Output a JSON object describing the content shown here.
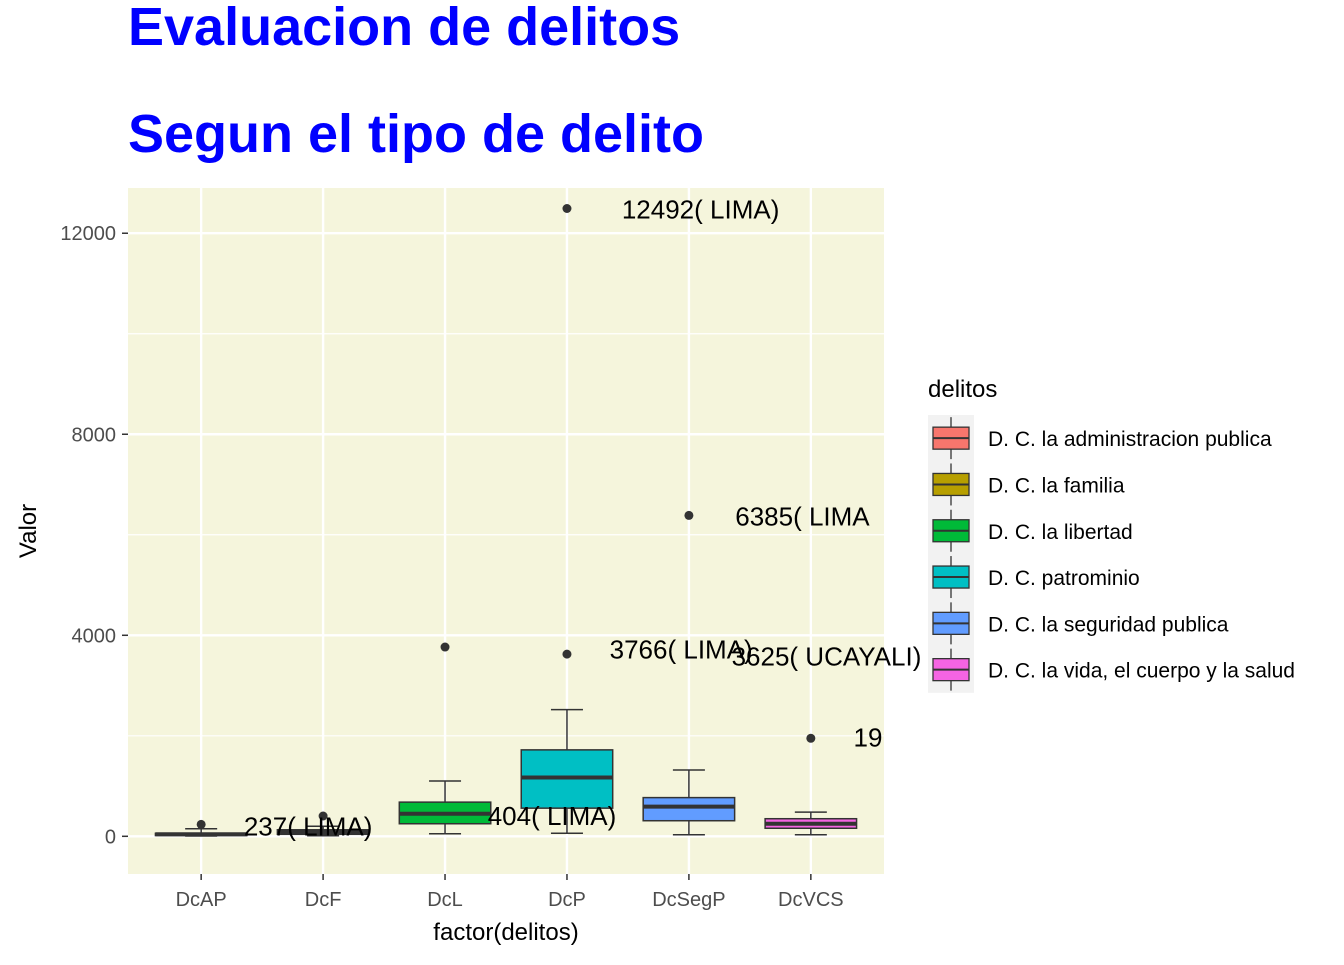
{
  "chart_data": {
    "type": "boxplot",
    "title": "Evaluacion de delitos",
    "subtitle": "Segun el tipo de delito",
    "title_color": "#0000FF",
    "xlabel": "factor(delitos)",
    "ylabel": "Valor",
    "ylim": [
      -750,
      12900
    ],
    "yticks": [
      0,
      4000,
      8000,
      12000
    ],
    "ytick_labels": [
      "0",
      "4000",
      "8000",
      "12000"
    ],
    "panel_background": "#F5F5DC",
    "grid": true,
    "legend_title": "delitos",
    "legend_position": "right",
    "categories": [
      {
        "code": "DcAP",
        "legend": "D. C. la administracion publica",
        "color": "#F8766D",
        "whisker_low": 5,
        "q1": 15,
        "median": 40,
        "q3": 60,
        "whisker_high": 150,
        "outliers": [
          237
        ],
        "label": "237( LIMA)",
        "label_value": 180
      },
      {
        "code": "DcF",
        "legend": "D. C. la familia",
        "color": "#B79F00",
        "whisker_low": 10,
        "q1": 40,
        "median": 80,
        "q3": 130,
        "whisker_high": 200,
        "outliers": [
          404
        ],
        "label": "",
        "label_value": 0
      },
      {
        "code": "DcL",
        "legend": "D. C. la libertad",
        "color": "#00BA38",
        "whisker_low": 50,
        "q1": 250,
        "median": 450,
        "q3": 680,
        "whisker_high": 1100,
        "outliers": [
          3766
        ],
        "label": "404( LIMA)",
        "label_value": 380
      },
      {
        "code": "DcP",
        "legend": "D. C. patrominio",
        "color": "#00BFC4",
        "whisker_low": 60,
        "q1": 560,
        "median": 1170,
        "q3": 1720,
        "whisker_high": 2520,
        "outliers": [
          3625,
          12492
        ],
        "label": "3766( LIMA)",
        "label_value": 3700
      },
      {
        "code": "DcSegP",
        "legend": "D. C. la seguridad publica",
        "color": "#619CFF",
        "whisker_low": 30,
        "q1": 310,
        "median": 590,
        "q3": 770,
        "whisker_high": 1320,
        "outliers": [
          6385
        ],
        "label": "3625( UCAYALI)",
        "label_value": 3560
      },
      {
        "code": "DcVCS",
        "legend": "D. C. la vida, el cuerpo y la salud",
        "color": "#F564E3",
        "whisker_low": 30,
        "q1": 160,
        "median": 250,
        "q3": 350,
        "whisker_high": 480,
        "outliers": [
          1950
        ],
        "label": "19",
        "label_value": 1950
      }
    ],
    "extra_labels": [
      {
        "text": "12492( LIMA)",
        "category": "DcP",
        "value": 12492,
        "offset": 0.45
      },
      {
        "text": "6385( LIMA",
        "category": "DcSegP",
        "value": 6385,
        "offset": 0.38
      }
    ]
  }
}
